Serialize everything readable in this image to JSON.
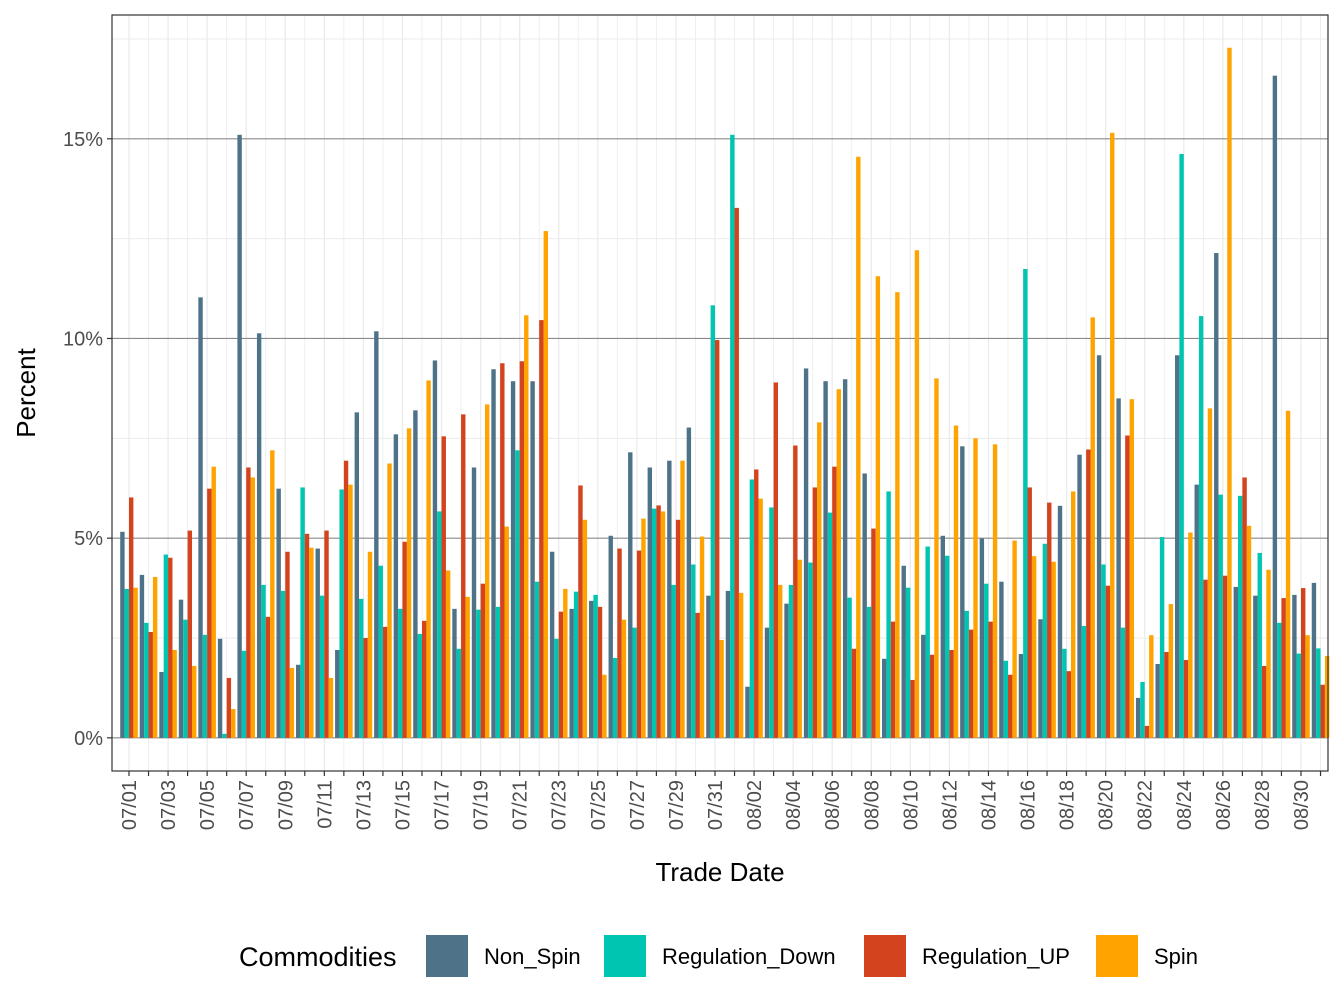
{
  "chart_data": {
    "type": "bar",
    "xlabel": "Trade Date",
    "ylabel": "Percent",
    "ylim": [
      -0.83,
      18.1
    ],
    "yticks": [
      0,
      5,
      10,
      15
    ],
    "ytick_labels": [
      "0%",
      "5%",
      "10%",
      "15%"
    ],
    "grid": true,
    "legend_position": "bottom",
    "legend_title": "Commodities",
    "categories": [
      "07/01",
      "07/02",
      "07/03",
      "07/04",
      "07/05",
      "07/06",
      "07/07",
      "07/08",
      "07/09",
      "07/10",
      "07/11",
      "07/12",
      "07/13",
      "07/14",
      "07/15",
      "07/16",
      "07/17",
      "07/18",
      "07/19",
      "07/20",
      "07/21",
      "07/22",
      "07/23",
      "07/24",
      "07/25",
      "07/26",
      "07/27",
      "07/28",
      "07/29",
      "07/30",
      "07/31",
      "08/01",
      "08/02",
      "08/03",
      "08/04",
      "08/05",
      "08/06",
      "08/07",
      "08/08",
      "08/09",
      "08/10",
      "08/11",
      "08/12",
      "08/13",
      "08/14",
      "08/15",
      "08/16",
      "08/17",
      "08/18",
      "08/19",
      "08/20",
      "08/21",
      "08/22",
      "08/23",
      "08/24",
      "08/25",
      "08/26",
      "08/27",
      "08/28",
      "08/29",
      "08/30",
      "08/31"
    ],
    "x_tick_labels": [
      "07/01",
      "07/03",
      "07/05",
      "07/07",
      "07/09",
      "07/11",
      "07/13",
      "07/15",
      "07/17",
      "07/19",
      "07/21",
      "07/23",
      "07/25",
      "07/27",
      "07/29",
      "07/31",
      "08/02",
      "08/04",
      "08/06",
      "08/08",
      "08/10",
      "08/12",
      "08/14",
      "08/16",
      "08/18",
      "08/20",
      "08/22",
      "08/24",
      "08/26",
      "08/28",
      "08/30"
    ],
    "series": [
      {
        "name": "Non_Spin",
        "color": "#4e7389",
        "values": [
          5.16,
          4.08,
          1.65,
          3.46,
          11.03,
          2.48,
          15.1,
          10.13,
          6.24,
          1.83,
          4.74,
          2.2,
          8.15,
          10.18,
          7.6,
          8.2,
          9.45,
          3.23,
          6.77,
          9.23,
          8.93,
          8.93,
          4.66,
          3.23,
          3.43,
          5.06,
          7.15,
          6.77,
          6.94,
          7.77,
          3.56,
          3.68,
          1.28,
          2.76,
          3.36,
          9.25,
          8.93,
          8.98,
          6.62,
          1.98,
          4.31,
          2.58,
          5.06,
          7.3,
          4.99,
          3.91,
          2.1,
          2.97,
          5.81,
          7.09,
          9.58,
          8.5,
          1.0,
          1.85,
          9.58,
          6.34,
          12.14,
          3.78,
          3.56,
          16.58,
          3.58,
          3.88
        ]
      },
      {
        "name": "Regulation_Down",
        "color": "#00c5b0",
        "values": [
          3.73,
          2.88,
          4.59,
          2.96,
          2.58,
          0.1,
          2.18,
          3.83,
          3.68,
          6.27,
          3.56,
          6.22,
          3.48,
          4.31,
          3.23,
          2.6,
          5.67,
          2.23,
          3.21,
          3.28,
          7.2,
          3.91,
          2.48,
          3.66,
          3.58,
          2.0,
          2.76,
          5.74,
          3.83,
          4.34,
          10.83,
          15.1,
          6.47,
          5.77,
          3.83,
          4.39,
          5.64,
          3.51,
          3.28,
          6.17,
          3.76,
          4.79,
          4.56,
          3.18,
          3.86,
          1.93,
          11.74,
          4.86,
          2.23,
          2.8,
          4.34,
          2.76,
          1.4,
          5.03,
          14.62,
          10.56,
          6.09,
          6.06,
          4.63,
          2.88,
          2.11,
          2.24
        ]
      },
      {
        "name": "Regulation_UP",
        "color": "#d2431e",
        "values": [
          6.02,
          2.65,
          4.51,
          5.19,
          6.24,
          1.5,
          6.77,
          3.03,
          4.66,
          5.11,
          5.19,
          6.94,
          2.5,
          2.78,
          4.91,
          2.93,
          7.55,
          8.1,
          3.86,
          9.38,
          9.43,
          10.46,
          3.16,
          6.32,
          3.28,
          4.74,
          4.69,
          5.82,
          5.46,
          3.13,
          9.96,
          13.27,
          6.72,
          8.9,
          7.32,
          6.27,
          6.79,
          2.23,
          5.24,
          2.91,
          1.45,
          2.08,
          2.2,
          2.71,
          2.91,
          1.58,
          6.27,
          5.89,
          1.67,
          7.22,
          3.81,
          7.57,
          0.3,
          2.15,
          1.95,
          3.96,
          4.06,
          6.52,
          1.8,
          3.5,
          3.75,
          1.33
        ]
      },
      {
        "name": "Spin",
        "color": "#ffa300",
        "values": [
          3.76,
          4.03,
          2.2,
          1.8,
          6.79,
          0.72,
          6.52,
          7.2,
          1.75,
          4.76,
          1.5,
          6.34,
          4.66,
          6.87,
          7.75,
          8.95,
          4.19,
          3.53,
          8.35,
          5.29,
          10.58,
          12.69,
          3.73,
          5.46,
          1.58,
          2.96,
          5.49,
          5.67,
          6.94,
          5.04,
          2.45,
          3.63,
          5.99,
          3.83,
          4.46,
          7.9,
          8.73,
          14.55,
          11.56,
          11.16,
          12.21,
          9.0,
          7.82,
          7.5,
          7.35,
          4.94,
          4.55,
          4.41,
          6.17,
          10.53,
          15.15,
          8.48,
          2.57,
          3.35,
          5.14,
          8.25,
          17.28,
          5.31,
          4.21,
          8.19,
          2.57,
          2.05
        ]
      }
    ]
  }
}
